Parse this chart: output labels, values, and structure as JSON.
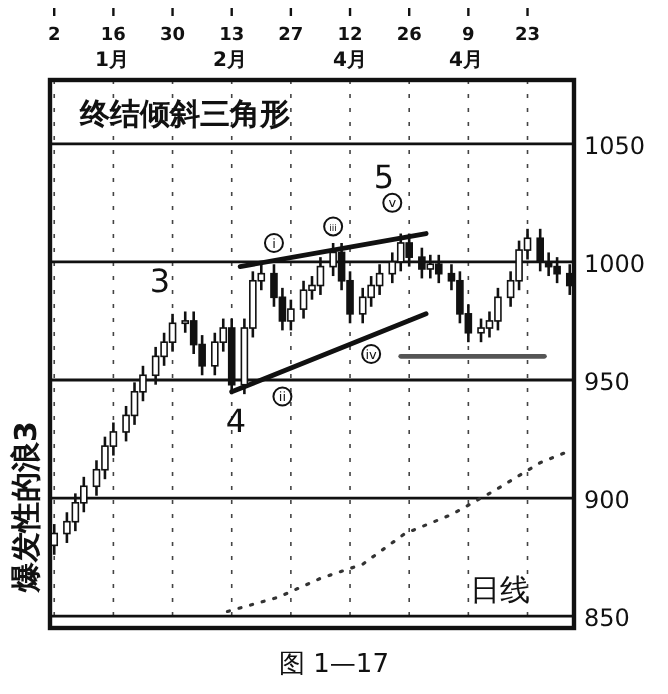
{
  "chart_data": {
    "type": "candlestick",
    "title": "终结倾斜三角形",
    "ylabel": "爆发性的浪3",
    "color": "#111111",
    "x": [
      "--01-02",
      "--01-05",
      "--01-07",
      "--01-09",
      "--01-12",
      "--01-14",
      "--01-16",
      "--01-19",
      "--01-21",
      "--01-23",
      "--01-26",
      "--01-28",
      "--01-30",
      "--02-02",
      "--02-04",
      "--02-06",
      "--02-09",
      "--02-11",
      "--02-13",
      "--02-16",
      "--02-18",
      "--02-20",
      "--02-23",
      "--02-25",
      "--02-27",
      "--03-01",
      "--03-03",
      "--03-05",
      "--03-08",
      "--03-10",
      "--03-12",
      "--03-15",
      "--03-17",
      "--03-19",
      "--03-22",
      "--03-24",
      "--03-26",
      "--03-29",
      "--03-31",
      "--04-02",
      "--04-05",
      "--04-07",
      "--04-09",
      "--04-12",
      "--04-14",
      "--04-16",
      "--04-19",
      "--04-21",
      "--04-23",
      "--04-26",
      "--04-28",
      "--04-30",
      "--05-03"
    ],
    "ohlc": [
      [
        880,
        889,
        876,
        885
      ],
      [
        885,
        894,
        881,
        890
      ],
      [
        890,
        902,
        886,
        898
      ],
      [
        898,
        909,
        894,
        905
      ],
      [
        905,
        916,
        901,
        912
      ],
      [
        912,
        926,
        908,
        922
      ],
      [
        922,
        932,
        918,
        928
      ],
      [
        928,
        939,
        924,
        935
      ],
      [
        935,
        949,
        931,
        945
      ],
      [
        945,
        956,
        941,
        952
      ],
      [
        952,
        964,
        948,
        960
      ],
      [
        960,
        970,
        956,
        966
      ],
      [
        966,
        978,
        962,
        974
      ],
      [
        974,
        979,
        970,
        975
      ],
      [
        975,
        979,
        961,
        965
      ],
      [
        965,
        969,
        952,
        956
      ],
      [
        956,
        970,
        952,
        966
      ],
      [
        966,
        976,
        962,
        972
      ],
      [
        972,
        976,
        944,
        948
      ],
      [
        948,
        976,
        944,
        972
      ],
      [
        972,
        996,
        968,
        992
      ],
      [
        992,
        999,
        988,
        995
      ],
      [
        995,
        999,
        981,
        985
      ],
      [
        985,
        989,
        971,
        975
      ],
      [
        975,
        984,
        971,
        980
      ],
      [
        980,
        992,
        976,
        988
      ],
      [
        988,
        994,
        984,
        990
      ],
      [
        990,
        1002,
        986,
        998
      ],
      [
        998,
        1008,
        994,
        1004
      ],
      [
        1004,
        1008,
        988,
        992
      ],
      [
        992,
        996,
        974,
        978
      ],
      [
        978,
        989,
        974,
        985
      ],
      [
        985,
        994,
        981,
        990
      ],
      [
        990,
        999,
        986,
        995
      ],
      [
        995,
        1004,
        991,
        1000
      ],
      [
        1000,
        1012,
        996,
        1008
      ],
      [
        1008,
        1012,
        998,
        1002
      ],
      [
        1002,
        1006,
        993,
        997
      ],
      [
        997,
        1003,
        993,
        999
      ],
      [
        999,
        1003,
        991,
        995
      ],
      [
        995,
        999,
        988,
        992
      ],
      [
        992,
        996,
        974,
        978
      ],
      [
        978,
        982,
        966,
        970
      ],
      [
        970,
        976,
        966,
        972
      ],
      [
        972,
        979,
        968,
        975
      ],
      [
        975,
        989,
        971,
        985
      ],
      [
        985,
        996,
        981,
        992
      ],
      [
        992,
        1009,
        988,
        1005
      ],
      [
        1005,
        1014,
        1001,
        1010
      ],
      [
        1010,
        1014,
        996,
        1000
      ],
      [
        1000,
        1004,
        994,
        998
      ],
      [
        998,
        1002,
        991,
        995
      ],
      [
        995,
        999,
        986,
        990
      ]
    ],
    "series": [
      {
        "type": "line",
        "color": "#111111",
        "x": [
          "--02-15",
          "--03-30"
        ],
        "values": [
          998,
          1012
        ]
      },
      {
        "type": "line",
        "color": "#111111",
        "x": [
          "--02-13",
          "--03-30"
        ],
        "values": [
          945,
          978
        ]
      },
      {
        "type": "line",
        "color": "#555555",
        "x": [
          "--03-24",
          "--04-27"
        ],
        "values": [
          960,
          960
        ]
      },
      {
        "type": "line",
        "color": "#333333",
        "line_style": "dotted",
        "x": [
          "--02-12",
          "--02-24",
          "--03-05",
          "--03-15",
          "--03-25",
          "--04-05",
          "--04-15",
          "--04-26",
          "--05-03"
        ],
        "values": [
          852,
          858,
          866,
          872,
          885,
          893,
          903,
          915,
          920
        ]
      }
    ],
    "xlim": [
      "--01-01",
      "--05-04"
    ],
    "xticks": [
      {
        "value": "--01-02",
        "label": "2"
      },
      {
        "value": "--01-16",
        "label": "16"
      },
      {
        "value": "--01-30",
        "label": "30"
      },
      {
        "value": "--02-13",
        "label": "13"
      },
      {
        "value": "--02-27",
        "label": "27"
      },
      {
        "value": "--03-12",
        "label": "12"
      },
      {
        "value": "--03-26",
        "label": "26"
      },
      {
        "value": "--04-09",
        "label": "9"
      },
      {
        "value": "--04-23",
        "label": "23"
      }
    ],
    "ylim": [
      845,
      1077
    ],
    "yticks": [
      850,
      900,
      950,
      1000,
      1050
    ],
    "grid": true,
    "annotations": [
      "3",
      "4",
      "5",
      {
        "text": "i",
        "x": "--02-23",
        "y": 1008
      },
      {
        "text": "iii",
        "x": "--03-08",
        "y": 1015
      },
      {
        "text": "v",
        "x": "--03-22",
        "y": 1025
      },
      {
        "text": "ii",
        "x": "--02-25",
        "y": 943
      },
      {
        "text": "iv",
        "x": "--03-17",
        "y": 961
      },
      "日线",
      "图 1—17",
      "1月",
      "2月",
      "4月",
      "4月"
    ]
  }
}
